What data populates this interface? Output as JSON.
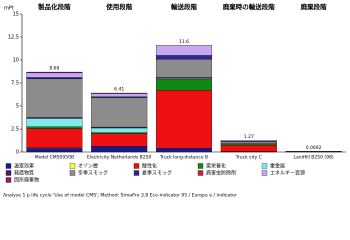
{
  "chart_data": {
    "type": "stacked_bar",
    "y_label": "mPt",
    "stage_headers": [
      "製品化段階",
      "使用段階",
      "輸送段階",
      "廃棄時の輸送段階",
      "廃棄段階"
    ],
    "categories": [
      "Model CMS0950B",
      "Electricity Netherlands B250",
      "Truck long-distance B",
      "Truck city C",
      "Landfill B250 (98)"
    ],
    "totals": [
      8.69,
      6.41,
      11.6,
      1.27,
      0.0692
    ],
    "series": [
      {
        "name": "温室効果",
        "color": "#1a1a8c",
        "values": [
          0.4,
          0.6,
          0.4,
          0.05,
          0.02
        ]
      },
      {
        "name": "オゾン層",
        "color": "#ffff33",
        "values": [
          0.05,
          0.01,
          0,
          0,
          0
        ]
      },
      {
        "name": "酸性化",
        "color": "#ee1111",
        "values": [
          2.1,
          1.4,
          6.3,
          0.7,
          0.01
        ]
      },
      {
        "name": "富栄養化",
        "color": "#118811",
        "values": [
          0.2,
          0.1,
          1.2,
          0.13,
          0.02
        ]
      },
      {
        "name": "重金属",
        "color": "#7fe8e8",
        "values": [
          0.9,
          0.5,
          0.1,
          0.01,
          0
        ]
      },
      {
        "name": "発癌物質",
        "color": "#4b1a6b",
        "values": [
          0.1,
          0.1,
          0.1,
          0.01,
          0
        ]
      },
      {
        "name": "冬季スモッグ",
        "color": "#8c8c8c",
        "values": [
          4.2,
          3.2,
          2.0,
          0.2,
          0.01
        ]
      },
      {
        "name": "夏季スモッグ",
        "color": "#2a2a9a",
        "values": [
          0.15,
          0.1,
          0.4,
          0.05,
          0
        ]
      },
      {
        "name": "病害虫防除剤",
        "color": "#cc2244",
        "values": [
          0,
          0,
          0,
          0,
          0
        ]
      },
      {
        "name": "エネルギー資源",
        "color": "#c8a8f0",
        "values": [
          0.5,
          0.35,
          1.1,
          0.12,
          0.0092
        ]
      },
      {
        "name": "固形廃棄物",
        "color": "#9a1a6a",
        "values": [
          0.09,
          0.05,
          0,
          0,
          0
        ]
      }
    ],
    "ylim": [
      0,
      15
    ],
    "yticks": [
      0,
      2.5,
      5,
      7.5,
      10,
      12.5,
      15
    ],
    "grid": false,
    "footer": "Analyse 1 p life cycle 'Use of model CMS'; Method: SimaPro 3.8 Eco-indicator 95 / Europe e / indicator"
  }
}
